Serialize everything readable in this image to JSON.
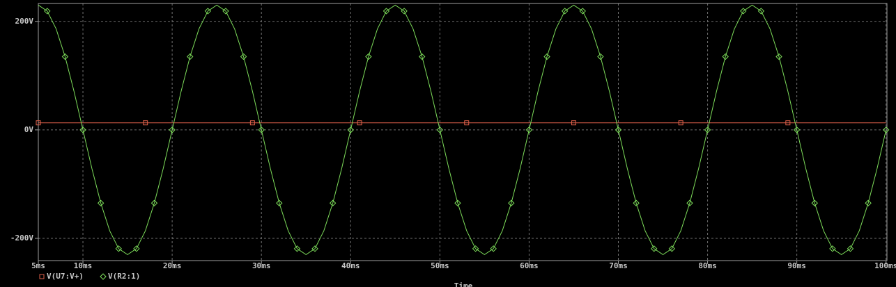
{
  "chart_data": {
    "type": "line",
    "x_label": "Time",
    "x": [
      5,
      6,
      7,
      8,
      9,
      10,
      11,
      12,
      13,
      14,
      15,
      16,
      17,
      18,
      19,
      20,
      21,
      22,
      23,
      24,
      25,
      26,
      27,
      28,
      29,
      30,
      31,
      32,
      33,
      34,
      35,
      36,
      37,
      38,
      39,
      40,
      41,
      42,
      43,
      44,
      45,
      46,
      47,
      48,
      49,
      50,
      51,
      52,
      53,
      54,
      55,
      56,
      57,
      58,
      59,
      60,
      61,
      62,
      63,
      64,
      65,
      66,
      67,
      68,
      69,
      70,
      71,
      72,
      73,
      74,
      75,
      76,
      77,
      78,
      79,
      80,
      81,
      82,
      83,
      84,
      85,
      86,
      87,
      88,
      89,
      90,
      91,
      92,
      93,
      94,
      95,
      96,
      97,
      98,
      99,
      100
    ],
    "series": [
      {
        "name": "V(U7:V+)",
        "color": "#e0604a",
        "marker": "square",
        "values": [
          13,
          13,
          13,
          13,
          13,
          13,
          13,
          13,
          13,
          13,
          13,
          13,
          13,
          13,
          13,
          13,
          13,
          13,
          13,
          13,
          13,
          13,
          13,
          13,
          13,
          13,
          13,
          13,
          13,
          13,
          13,
          13,
          13,
          13,
          13,
          13,
          13,
          13,
          13,
          13,
          13,
          13,
          13,
          13,
          13,
          13,
          13,
          13,
          13,
          13,
          13,
          13,
          13,
          13,
          13,
          13,
          13,
          13,
          13,
          13,
          13,
          13,
          13,
          13,
          13,
          13,
          13,
          13,
          13,
          13,
          13,
          13,
          13,
          13,
          13,
          13,
          13,
          13,
          13,
          13,
          13,
          13,
          13,
          13,
          13,
          13,
          13,
          13,
          13,
          13,
          13,
          13,
          13,
          13,
          13,
          13
        ]
      },
      {
        "name": "V(R2:1)",
        "color": "#7ddc5a",
        "marker": "diamond",
        "values": [
          230,
          219,
          186,
          135,
          71,
          0,
          -71,
          -135,
          -186,
          -219,
          -230,
          -219,
          -186,
          -135,
          -71,
          0,
          71,
          135,
          186,
          219,
          230,
          219,
          186,
          135,
          71,
          0,
          -71,
          -135,
          -186,
          -219,
          -230,
          -219,
          -186,
          -135,
          -71,
          0,
          71,
          135,
          186,
          219,
          230,
          219,
          186,
          135,
          71,
          0,
          -71,
          -135,
          -186,
          -219,
          -230,
          -219,
          -186,
          -135,
          -71,
          0,
          71,
          135,
          186,
          219,
          230,
          219,
          186,
          135,
          71,
          0,
          -71,
          -135,
          -186,
          -219,
          -230,
          -219,
          -186,
          -135,
          -71,
          0,
          71,
          135,
          186,
          219,
          230,
          219,
          186,
          135,
          71,
          0,
          -71,
          -135,
          -186,
          -219,
          -230,
          -219,
          -186,
          -135,
          -71,
          0
        ]
      }
    ],
    "xlim": [
      5,
      100.1
    ],
    "xticks": [
      {
        "value": 5,
        "label": "5ms"
      },
      {
        "value": 10,
        "label": "10ms"
      },
      {
        "value": 20,
        "label": "20ms"
      },
      {
        "value": 30,
        "label": "30ms"
      },
      {
        "value": 40,
        "label": "40ms"
      },
      {
        "value": 50,
        "label": "50ms"
      },
      {
        "value": 60,
        "label": "60ms"
      },
      {
        "value": 70,
        "label": "70ms"
      },
      {
        "value": 80,
        "label": "80ms"
      },
      {
        "value": 90,
        "label": "90ms"
      },
      {
        "value": 100,
        "label": "100ms"
      }
    ],
    "ylim": [
      -241,
      233
    ],
    "yticks": [
      {
        "value": 200,
        "label": "200V"
      },
      {
        "value": 0,
        "label": "0V"
      },
      {
        "value": -200,
        "label": "-200V"
      }
    ],
    "grid": true
  }
}
